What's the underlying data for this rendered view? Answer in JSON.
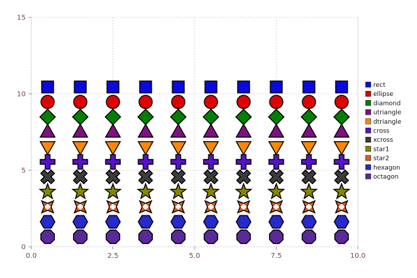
{
  "figure": {
    "background": "#ffffff",
    "grid_color": "#c9c9c9",
    "tick_color": "#999999",
    "tick_label_color": "#774444",
    "legend_text_color": "#111111",
    "marker_edge_color": "#000000"
  },
  "chart_data": {
    "type": "scatter",
    "title": "",
    "xlabel": "",
    "ylabel": "",
    "xlim": [
      0,
      10
    ],
    "ylim": [
      0,
      15
    ],
    "grid": true,
    "legend_position": "right",
    "x_tick_values": [
      0,
      2.5,
      5,
      7.5,
      10
    ],
    "x_tick_labels": [
      "0.0",
      "2.5",
      "5.0",
      "7.5",
      "10.0"
    ],
    "y_tick_values": [
      0,
      5,
      10,
      15
    ],
    "y_tick_labels": [
      "0",
      "5",
      "10",
      "15"
    ],
    "x": [
      0.5,
      1.5,
      2.5,
      3.5,
      4.5,
      5.5,
      6.5,
      7.5,
      8.5,
      9.5
    ],
    "series": [
      {
        "name": "rect",
        "marker": "rect",
        "color": "#0a0ae0",
        "y": 10.45
      },
      {
        "name": "ellipse",
        "marker": "ellipse",
        "color": "#e00000",
        "y": 9.47
      },
      {
        "name": "diamond",
        "marker": "diamond",
        "color": "#008000",
        "y": 8.49
      },
      {
        "name": "utriangle",
        "marker": "utriangle",
        "color": "#801080",
        "y": 7.51
      },
      {
        "name": "dtriangle",
        "marker": "dtriangle",
        "color": "#ff8800",
        "y": 6.53
      },
      {
        "name": "cross",
        "marker": "cross",
        "color": "#5513cc",
        "y": 5.55
      },
      {
        "name": "xcross",
        "marker": "xcross",
        "color": "#3c3c3c",
        "y": 4.57
      },
      {
        "name": "star1",
        "marker": "star1",
        "color": "#868600",
        "y": 3.59
      },
      {
        "name": "star2",
        "marker": "star2",
        "color": "#e05a1a",
        "y": 2.61,
        "center_color": "#ffffff"
      },
      {
        "name": "hexagon",
        "marker": "hexagon",
        "color": "#2828cc",
        "y": 1.63
      },
      {
        "name": "octagon",
        "marker": "octagon",
        "color": "#5a2a9a",
        "y": 0.65
      }
    ]
  }
}
